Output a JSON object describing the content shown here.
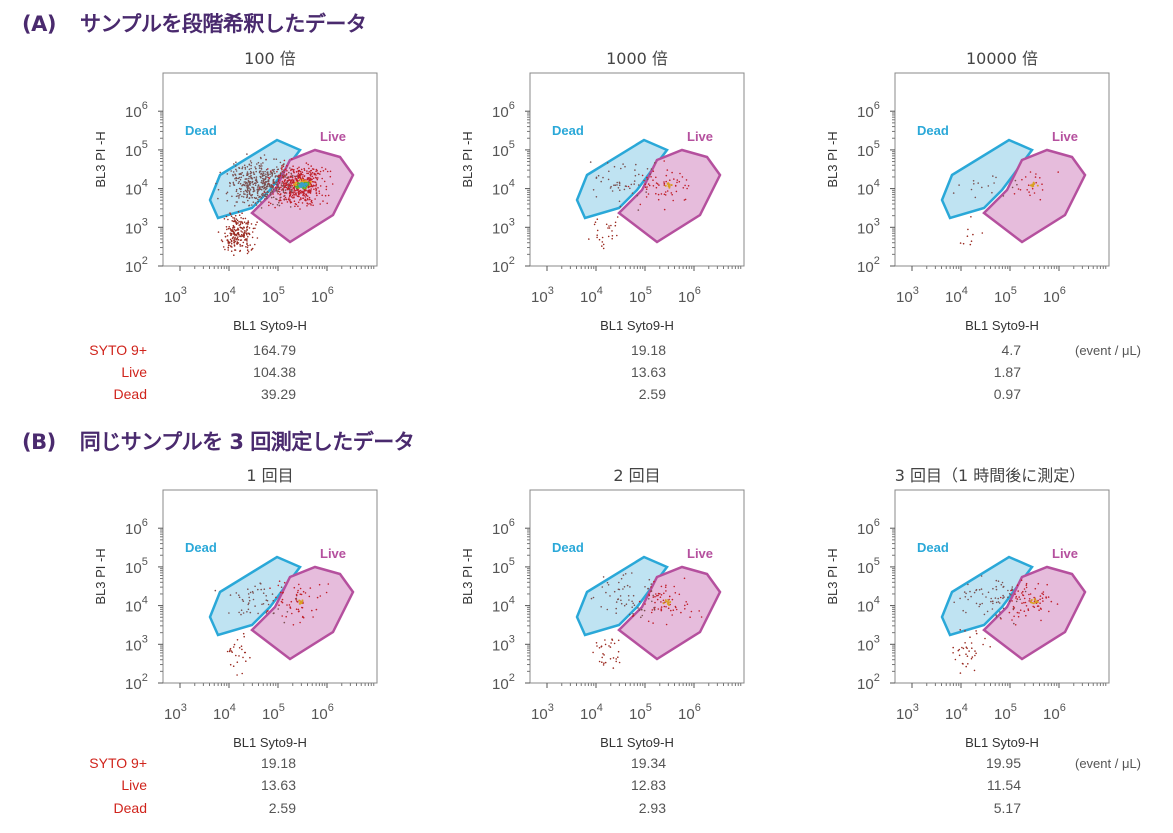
{
  "section_a": {
    "title_tag": "(A)",
    "title": "サンプルを段階希釈したデータ",
    "panels": [
      {
        "title": "100 倍"
      },
      {
        "title": "1000 倍"
      },
      {
        "title": "10000 倍"
      }
    ],
    "stats": {
      "labels": [
        "SYTO 9+",
        "Live",
        "Dead"
      ],
      "columns": [
        [
          "164.79",
          "104.38",
          "39.29"
        ],
        [
          "19.18",
          "13.63",
          "2.59"
        ],
        [
          "4.7",
          "1.87",
          "0.97"
        ]
      ],
      "unit": "(event / μL)"
    }
  },
  "section_b": {
    "title_tag": "(B)",
    "title": "同じサンプルを 3 回測定したデータ",
    "panels": [
      {
        "title": "1 回目"
      },
      {
        "title": "2 回目"
      },
      {
        "title": "3 回目（1 時間後に測定）"
      }
    ],
    "stats": {
      "labels": [
        "SYTO 9+",
        "Live",
        "Dead"
      ],
      "columns": [
        [
          "19.18",
          "13.63",
          "2.59"
        ],
        [
          "19.34",
          "12.83",
          "2.93"
        ],
        [
          "19.95",
          "11.54",
          "5.17"
        ]
      ],
      "unit": "(event / μL)"
    }
  },
  "chart_data": {
    "type": "scatter",
    "xlabel": "BL1 Syto9-H",
    "ylabel": "BL3 PI -H",
    "x_scale": "log",
    "y_scale": "log",
    "x_ticks": [
      "10^3",
      "10^4",
      "10^5",
      "10^6"
    ],
    "y_ticks": [
      "10^2",
      "10^3",
      "10^4",
      "10^5",
      "10^6"
    ],
    "gates": [
      {
        "name": "Dead",
        "color": "#2aa8d8",
        "fill": "#bfe3f2"
      },
      {
        "name": "Live",
        "color": "#b5509e",
        "fill": "#e6bcdc"
      }
    ],
    "panel_density": [
      1.0,
      0.12,
      0.04,
      0.12,
      0.14,
      0.16
    ]
  }
}
